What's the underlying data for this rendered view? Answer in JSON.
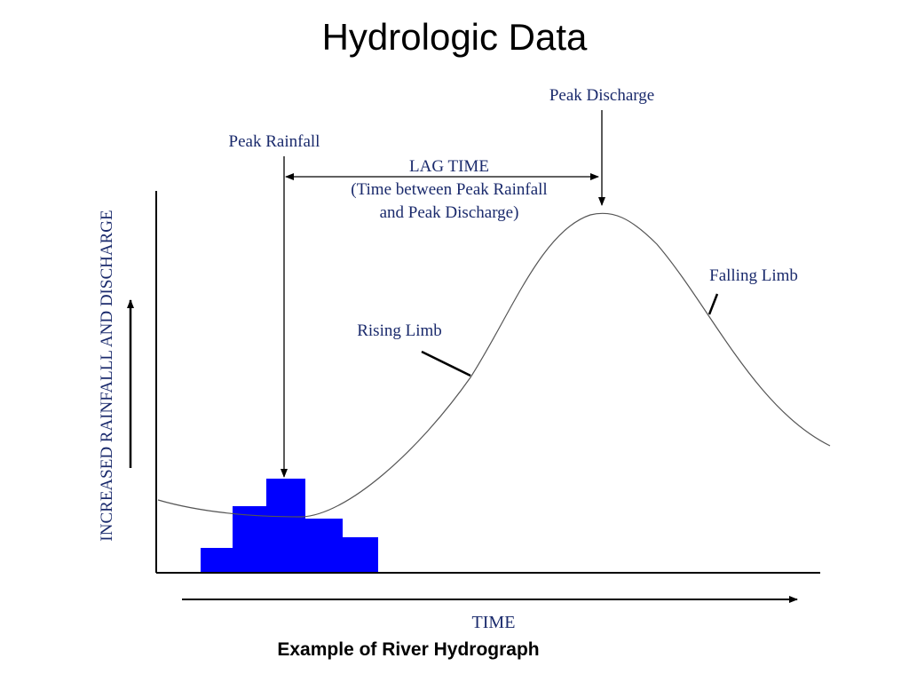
{
  "title": "Hydrologic Data",
  "caption": "Example of River Hydrograph",
  "colors": {
    "rainfall_bars": "#0000ff",
    "label_text": "#1a2a6c",
    "line": "#000000"
  },
  "diagram": {
    "y_axis_label": "INCREASED RAINFALLL AND DISCHARGE",
    "x_axis_label": "TIME",
    "peak_rainfall_label": "Peak Rainfall",
    "peak_discharge_label": "Peak Discharge",
    "lag_time": {
      "line1": "LAG TIME",
      "line2": "(Time between Peak Rainfall",
      "line3": "and Peak Discharge)"
    },
    "rising_limb_label": "Rising Limb",
    "falling_limb_label": "Falling Limb"
  }
}
